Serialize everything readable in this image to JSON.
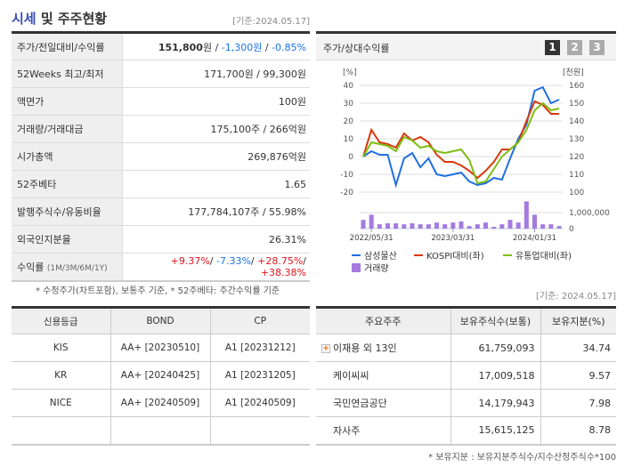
{
  "header": {
    "title_a": "시세",
    "title_b": " 및 주주현황",
    "date": "[기준:2024.05.17]"
  },
  "info": [
    {
      "label": "주가/전일대비/수익률",
      "price": "151,800",
      "unit": "원",
      "change": "-1,300원",
      "rate": "-0.85%"
    },
    {
      "label": "52Weeks 최고/최저",
      "value": "171,700원 / 99,300원"
    },
    {
      "label": "액면가",
      "value": "100원"
    },
    {
      "label": "거래량/거래대금",
      "value": "175,100주 / 266억원"
    },
    {
      "label": "시가총액",
      "value": "269,876억원"
    },
    {
      "label": "52주베타",
      "value": "1.65"
    },
    {
      "label": "발행주식수/유동비율",
      "value": "177,784,107주 / 55.98%"
    },
    {
      "label": "외국인지분율",
      "value": "26.31%"
    },
    {
      "label": "수익률",
      "label_sub": "(1M/3M/6M/1Y)",
      "r1": "+9.37%",
      "r2": "-7.33%",
      "r3": "+28.75%",
      "r4": "+38.38%"
    }
  ],
  "note1": "* 수정주가(차트포함), 보통주 기준, * 52주베타: 주간수익률 기준",
  "chart_panel": {
    "title": "주가/상대수익률",
    "tabs": [
      "1",
      "2",
      "3"
    ],
    "active_tab": "1"
  },
  "chart_data": {
    "type": "line",
    "left_unit": "[%]",
    "right_unit": "[천원]",
    "left_ylim": [
      -20,
      40
    ],
    "left_ticks": [
      "40",
      "30",
      "20",
      "10",
      "0",
      "-10",
      "-20"
    ],
    "right_ylim": [
      100,
      160
    ],
    "right_ticks": [
      "160",
      "150",
      "140",
      "130",
      "120",
      "110",
      "100"
    ],
    "volume_tick": "1,000,000",
    "volume_zero": "0",
    "x_ticks": [
      {
        "index": 1,
        "label": "2022/05/31"
      },
      {
        "index": 11,
        "label": "2023/03/31"
      },
      {
        "index": 21,
        "label": "2024/01/31"
      }
    ],
    "grid": true,
    "series": [
      {
        "name": "삼성물산",
        "color": "#1f6fe0",
        "values": [
          0,
          3,
          1,
          1,
          -16,
          -1,
          2,
          -6,
          -1,
          -10,
          -11,
          -10,
          -9,
          -14,
          -16,
          -15,
          -12,
          -13,
          -1,
          10,
          18,
          37,
          39,
          30,
          32
        ]
      },
      {
        "name": "KOSPI대비(좌)",
        "color": "#d9380d",
        "values": [
          0,
          15,
          8,
          7,
          5,
          13,
          9,
          11,
          8,
          1,
          -3,
          -3,
          -5,
          -8,
          -12,
          -8,
          -3,
          4,
          4,
          8,
          20,
          31,
          29,
          24,
          24
        ]
      },
      {
        "name": "유통업대비(좌)",
        "color": "#7cbf12",
        "values": [
          0,
          8,
          7,
          6,
          3,
          11,
          9,
          5,
          6,
          3,
          2,
          3,
          4,
          -2,
          -15,
          -14,
          -7,
          0,
          4,
          8,
          15,
          26,
          30,
          26,
          27
        ]
      }
    ],
    "volume": {
      "name": "거래량",
      "color": "#a57be0",
      "values": [
        550000,
        870000,
        270000,
        330000,
        330000,
        270000,
        330000,
        270000,
        270000,
        380000,
        270000,
        380000,
        450000,
        160000,
        270000,
        380000,
        110000,
        270000,
        550000,
        380000,
        1700000,
        870000,
        270000,
        270000,
        160000
      ]
    },
    "legend": "bottom"
  },
  "credit": {
    "headers": [
      "신용등급",
      "BOND",
      "CP"
    ],
    "rows": [
      [
        "KIS",
        "AA+  [20230510]",
        "A1  [20231212]"
      ],
      [
        "KR",
        "AA+  [20240425]",
        "A1  [20231205]"
      ],
      [
        "NICE",
        "AA+  [20240509]",
        "A1  [20240509]"
      ],
      [
        "",
        "",
        ""
      ]
    ]
  },
  "holders": {
    "date": "[기준: 2024.05.17]",
    "headers": [
      "주요주주",
      "보유주식수(보통)",
      "보유지분(%)"
    ],
    "rows": [
      [
        "이재용 외 13인",
        "61,759,093",
        "34.74"
      ],
      [
        "케이씨씨",
        "17,009,518",
        "9.57"
      ],
      [
        "국민연금공단",
        "14,179,943",
        "7.98"
      ],
      [
        "자사주",
        "15,615,125",
        "8.78"
      ]
    ],
    "note": "* 보유지분 : 보유지분주식수/지수산정주식수*100"
  },
  "colors": {
    "accent": "#3a4fb5",
    "up": "#e0161e",
    "down": "#1a73e8"
  }
}
